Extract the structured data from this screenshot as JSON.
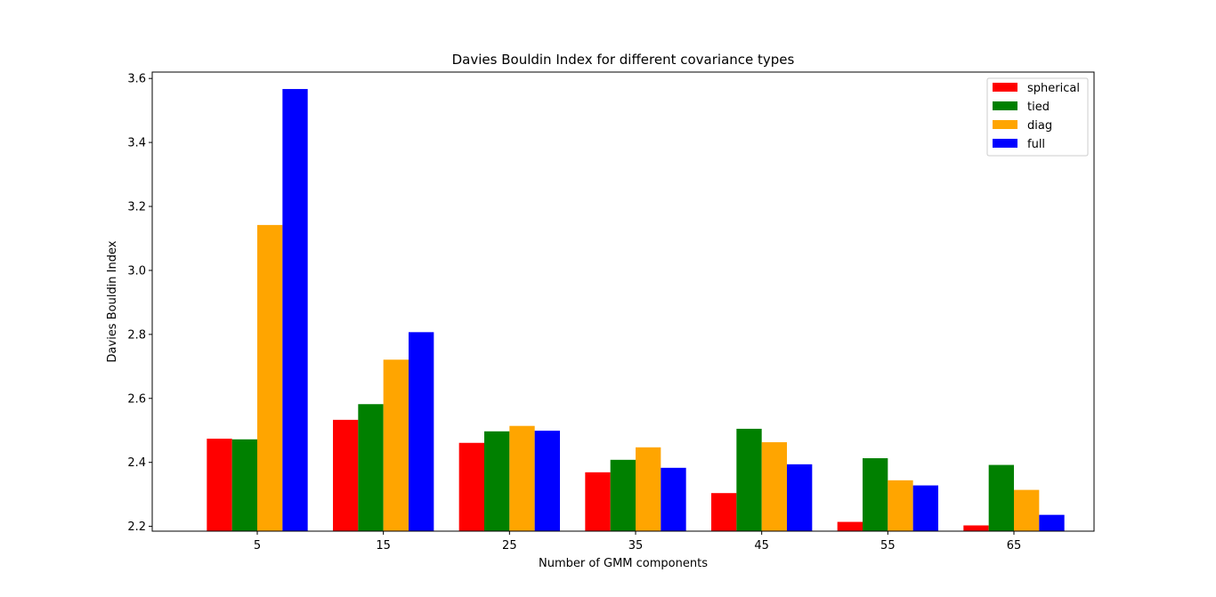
{
  "chart_data": {
    "type": "bar",
    "title": "Davies Bouldin Index for different covariance types",
    "xlabel": "Number of GMM components",
    "ylabel": "Davies Bouldin Index",
    "categories": [
      "5",
      "15",
      "25",
      "35",
      "45",
      "55",
      "65"
    ],
    "series": [
      {
        "name": "spherical",
        "color": "#ff0000",
        "values": [
          2.474,
          2.533,
          2.461,
          2.369,
          2.304,
          2.214,
          2.203
        ]
      },
      {
        "name": "tied",
        "color": "#008000",
        "values": [
          2.472,
          2.582,
          2.497,
          2.408,
          2.505,
          2.413,
          2.392
        ]
      },
      {
        "name": "diag",
        "color": "#ffa500",
        "values": [
          3.142,
          2.721,
          2.514,
          2.447,
          2.463,
          2.344,
          2.314
        ]
      },
      {
        "name": "full",
        "color": "#0000ff",
        "values": [
          3.567,
          2.807,
          2.499,
          2.383,
          2.394,
          2.328,
          2.236
        ]
      }
    ],
    "ylim": [
      2.185,
      3.62
    ],
    "yticks": [
      "2.2",
      "2.4",
      "2.6",
      "2.8",
      "3.0",
      "3.2",
      "3.4",
      "3.6"
    ],
    "grid": false,
    "legend_position": "top-right"
  }
}
